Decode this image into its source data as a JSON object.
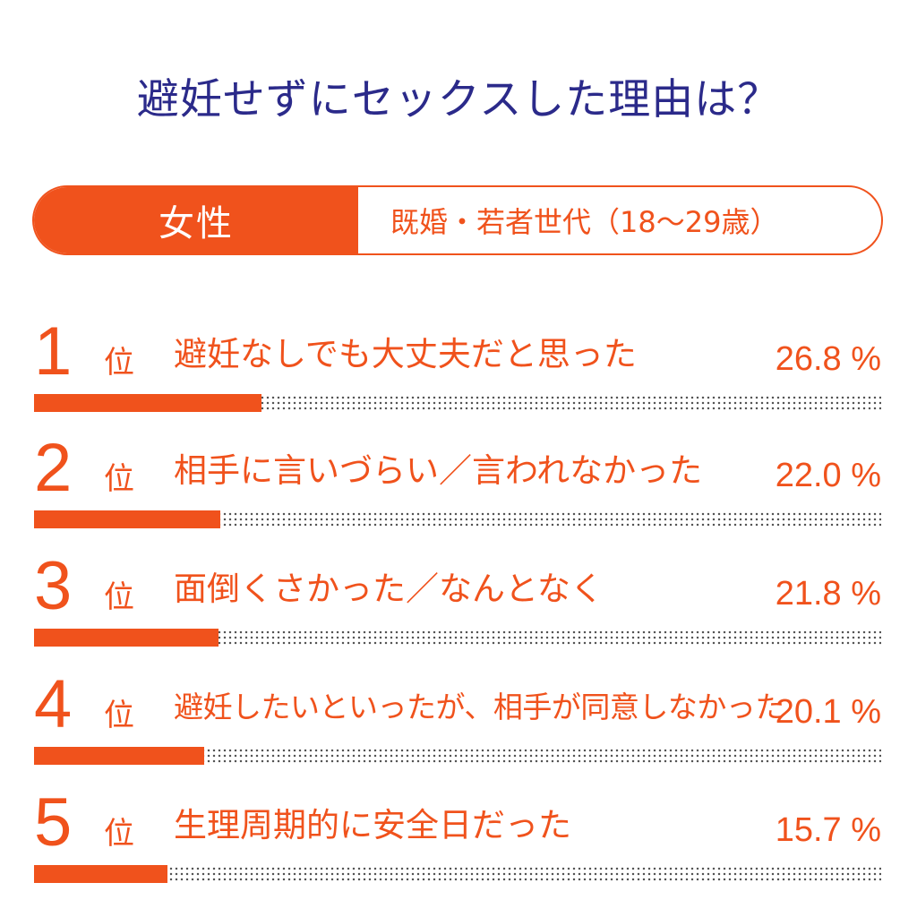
{
  "title": "避妊せずにセックスした理由は？",
  "segment": {
    "gender": "女性",
    "group": "既婚・若者世代（18〜29歳）"
  },
  "rank_unit": "位",
  "colors": {
    "accent": "#f0521c",
    "title": "#2b2a8a"
  },
  "chart_data": {
    "type": "bar",
    "categories": [
      "避妊なしでも大丈夫だと思った",
      "相手に言いづらい／言われなかった",
      "面倒くさかった／なんとなく",
      "避妊したいといったが、相手が同意しなかった",
      "生理周期的に安全日だった"
    ],
    "ranks": [
      "1",
      "2",
      "3",
      "4",
      "5"
    ],
    "values": [
      26.8,
      22.0,
      21.8,
      20.1,
      15.7
    ],
    "value_labels": [
      "26.8 %",
      "22.0 %",
      "21.8 %",
      "20.1 %",
      "15.7 %"
    ],
    "title": "避妊せずにセックスした理由は？",
    "xlabel": "",
    "ylabel": "",
    "xlim": [
      0,
      100
    ],
    "grid": false,
    "legend": "none"
  }
}
